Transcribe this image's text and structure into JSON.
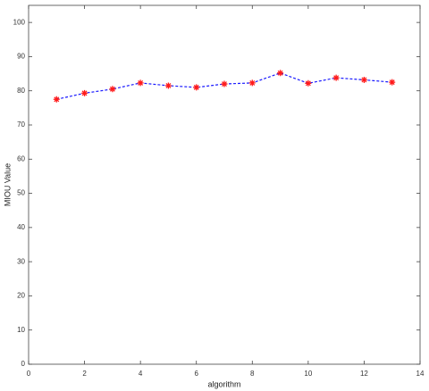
{
  "chart_data": {
    "type": "line",
    "x_label": "algorithm",
    "y_label": "MIOU Value",
    "x": [
      1,
      2,
      3,
      4,
      5,
      6,
      7,
      8,
      9,
      10,
      11,
      12,
      13
    ],
    "series": [
      {
        "color": "#1a1aff",
        "marker_color": "#ff1a1a",
        "values": [
          77.5,
          79.3,
          80.5,
          82.3,
          81.5,
          81.0,
          82.0,
          82.3,
          85.2,
          82.2,
          83.8,
          83.2,
          82.5
        ]
      }
    ],
    "xlim": [
      0,
      14
    ],
    "xticks": [
      0,
      2,
      4,
      6,
      8,
      10,
      12,
      14
    ],
    "ylim": [
      0,
      105
    ],
    "yticks": [
      0,
      10,
      20,
      30,
      40,
      50,
      60,
      70,
      80,
      90,
      100
    ]
  }
}
